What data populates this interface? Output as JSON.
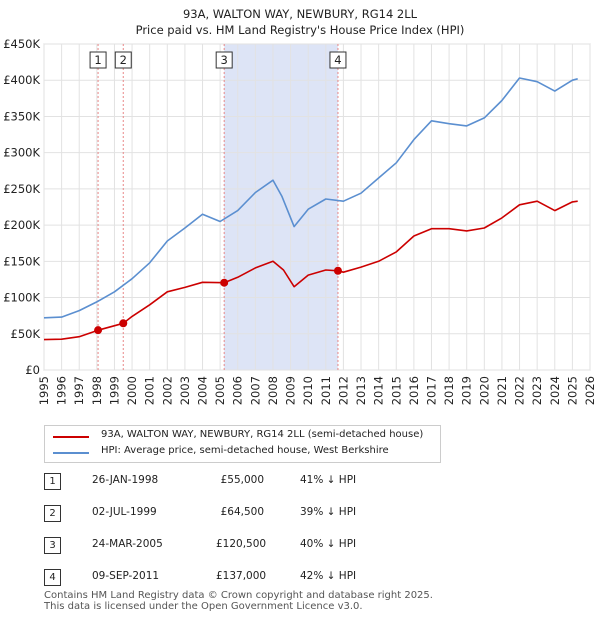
{
  "title_line1": "93A, WALTON WAY, NEWBURY, RG14 2LL",
  "title_line2": "Price paid vs. HM Land Registry's House Price Index (HPI)",
  "chart_data": {
    "type": "line",
    "title": "93A, WALTON WAY, NEWBURY, RG14 2LL — Price paid vs. HM Land Registry's House Price Index (HPI)",
    "xlim": [
      1995,
      2026
    ],
    "ylim": [
      0,
      450000
    ],
    "x_ticks": [
      1995,
      1996,
      1997,
      1998,
      1999,
      2000,
      2001,
      2002,
      2003,
      2004,
      2005,
      2006,
      2007,
      2008,
      2009,
      2010,
      2011,
      2012,
      2013,
      2014,
      2015,
      2016,
      2017,
      2018,
      2019,
      2020,
      2021,
      2022,
      2023,
      2024,
      2025,
      2026
    ],
    "y_ticks": [
      {
        "value": 0,
        "label": "£0"
      },
      {
        "value": 50000,
        "label": "£50K"
      },
      {
        "value": 100000,
        "label": "£100K"
      },
      {
        "value": 150000,
        "label": "£150K"
      },
      {
        "value": 200000,
        "label": "£200K"
      },
      {
        "value": 250000,
        "label": "£250K"
      },
      {
        "value": 300000,
        "label": "£300K"
      },
      {
        "value": 350000,
        "label": "£350K"
      },
      {
        "value": 400000,
        "label": "£400K"
      },
      {
        "value": 450000,
        "label": "£450K"
      }
    ],
    "shaded_ranges": [
      [
        2005.23,
        2011.69
      ]
    ],
    "hpi_series": {
      "name": "HPI: Average price, semi-detached house, West Berkshire",
      "color": "#5b8fd0",
      "points": [
        [
          1995,
          72000
        ],
        [
          1996,
          73000
        ],
        [
          1997,
          82000
        ],
        [
          1998,
          94000
        ],
        [
          1999,
          108000
        ],
        [
          2000,
          126000
        ],
        [
          2001,
          148000
        ],
        [
          2002,
          178000
        ],
        [
          2003,
          196000
        ],
        [
          2004,
          215000
        ],
        [
          2005,
          205000
        ],
        [
          2006,
          220000
        ],
        [
          2007,
          245000
        ],
        [
          2008,
          262000
        ],
        [
          2008.5,
          240000
        ],
        [
          2009.2,
          198000
        ],
        [
          2010,
          222000
        ],
        [
          2011,
          236000
        ],
        [
          2012,
          233000
        ],
        [
          2013,
          244000
        ],
        [
          2014,
          265000
        ],
        [
          2015,
          286000
        ],
        [
          2016,
          318000
        ],
        [
          2017,
          344000
        ],
        [
          2018,
          340000
        ],
        [
          2019,
          337000
        ],
        [
          2020,
          348000
        ],
        [
          2021,
          372000
        ],
        [
          2022,
          403000
        ],
        [
          2023,
          398000
        ],
        [
          2024,
          385000
        ],
        [
          2025,
          400000
        ],
        [
          2025.3,
          402000
        ]
      ]
    },
    "price_series": {
      "name": "93A, WALTON WAY, NEWBURY, RG14 2LL (semi-detached house)",
      "color": "#cc0000",
      "points": [
        [
          1995,
          42000
        ],
        [
          1996,
          42500
        ],
        [
          1997,
          46000
        ],
        [
          1998.07,
          55000
        ],
        [
          1999.5,
          64500
        ],
        [
          2000,
          74000
        ],
        [
          2001,
          90000
        ],
        [
          2002,
          108000
        ],
        [
          2003,
          114000
        ],
        [
          2004,
          121000
        ],
        [
          2005.23,
          120500
        ],
        [
          2006,
          128000
        ],
        [
          2007,
          141000
        ],
        [
          2008,
          150000
        ],
        [
          2008.6,
          138000
        ],
        [
          2009.2,
          115000
        ],
        [
          2010,
          131000
        ],
        [
          2011,
          138000
        ],
        [
          2011.69,
          137000
        ],
        [
          2012,
          135000
        ],
        [
          2013,
          142000
        ],
        [
          2014,
          150000
        ],
        [
          2015,
          163000
        ],
        [
          2016,
          185000
        ],
        [
          2017,
          195000
        ],
        [
          2018,
          195000
        ],
        [
          2019,
          192000
        ],
        [
          2020,
          196000
        ],
        [
          2021,
          210000
        ],
        [
          2022,
          228000
        ],
        [
          2023,
          233000
        ],
        [
          2024,
          220000
        ],
        [
          2025,
          232000
        ],
        [
          2025.3,
          233000
        ]
      ]
    },
    "sales": [
      {
        "id": "1",
        "x": 1998.07,
        "y": 55000
      },
      {
        "id": "2",
        "x": 1999.5,
        "y": 64500
      },
      {
        "id": "3",
        "x": 2005.23,
        "y": 120500
      },
      {
        "id": "4",
        "x": 2011.69,
        "y": 137000
      }
    ]
  },
  "legend": {
    "price_label": "93A, WALTON WAY, NEWBURY, RG14 2LL (semi-detached house)",
    "hpi_label": "HPI: Average price, semi-detached house, West Berkshire",
    "price_color": "#cc0000",
    "hpi_color": "#5b8fd0"
  },
  "sales_table": [
    {
      "id": "1",
      "date": "26-JAN-1998",
      "price": "£55,000",
      "hpi": "41% ↓ HPI"
    },
    {
      "id": "2",
      "date": "02-JUL-1999",
      "price": "£64,500",
      "hpi": "39% ↓ HPI"
    },
    {
      "id": "3",
      "date": "24-MAR-2005",
      "price": "£120,500",
      "hpi": "40% ↓ HPI"
    },
    {
      "id": "4",
      "date": "09-SEP-2011",
      "price": "£137,000",
      "hpi": "42% ↓ HPI"
    }
  ],
  "footer_line1": "Contains HM Land Registry data © Crown copyright and database right 2025.",
  "footer_line2": "This data is licensed under the Open Government Licence v3.0."
}
